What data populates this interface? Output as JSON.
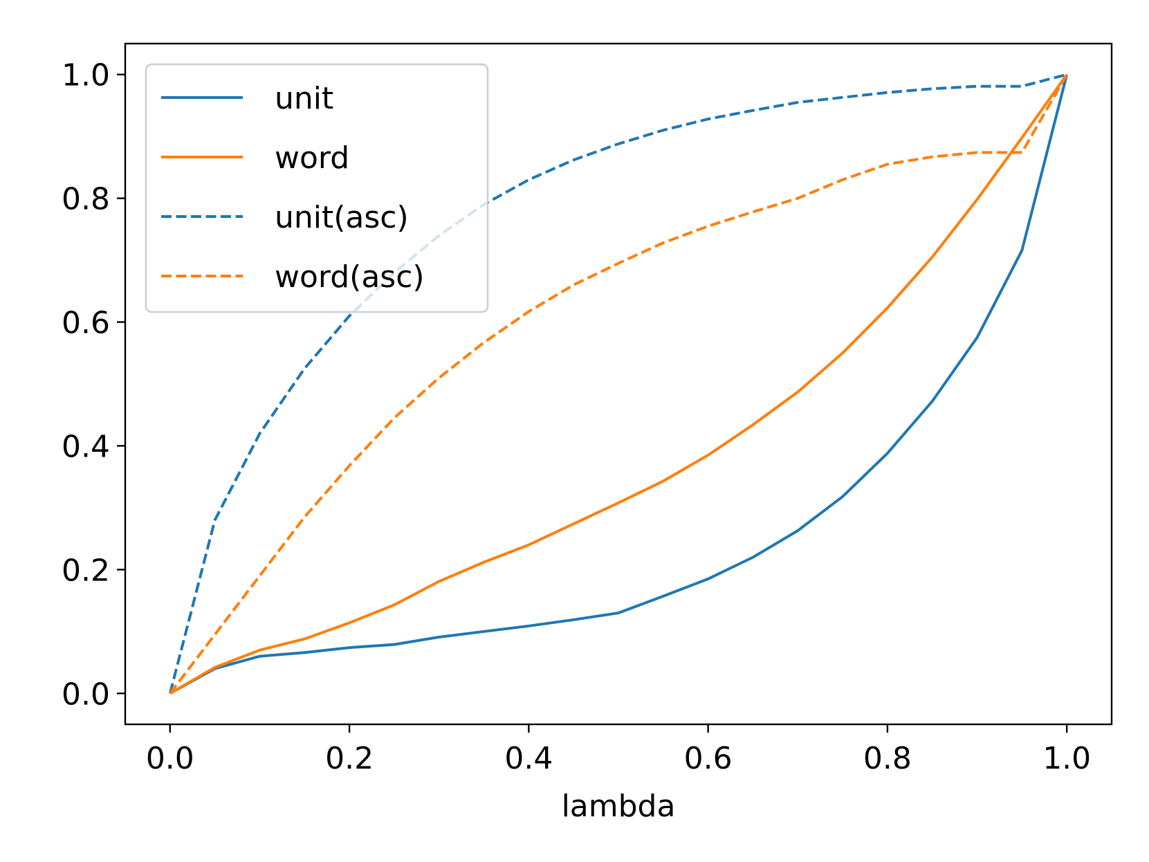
{
  "chart_data": {
    "type": "line",
    "title": "",
    "xlabel": "lambda",
    "ylabel": "",
    "xlim": [
      -0.05,
      1.05
    ],
    "ylim": [
      -0.05,
      1.05
    ],
    "xticks": [
      0.0,
      0.2,
      0.4,
      0.6,
      0.8,
      1.0
    ],
    "yticks": [
      0.0,
      0.2,
      0.4,
      0.6,
      0.8,
      1.0
    ],
    "xtick_labels": [
      "0.0",
      "0.2",
      "0.4",
      "0.6",
      "0.8",
      "1.0"
    ],
    "ytick_labels": [
      "0.0",
      "0.2",
      "0.4",
      "0.6",
      "0.8",
      "1.0"
    ],
    "grid": false,
    "legend_position": "upper-left",
    "x": [
      0.0,
      0.05,
      0.1,
      0.15,
      0.2,
      0.25,
      0.3,
      0.35,
      0.4,
      0.45,
      0.5,
      0.55,
      0.6,
      0.65,
      0.7,
      0.75,
      0.8,
      0.85,
      0.9,
      0.95,
      1.0
    ],
    "series": [
      {
        "name": "unit",
        "color": "#1f77b4",
        "style": "solid",
        "values": [
          0.0,
          0.04,
          0.06,
          0.066,
          0.074,
          0.079,
          0.091,
          0.1,
          0.109,
          0.119,
          0.13,
          0.157,
          0.185,
          0.22,
          0.263,
          0.318,
          0.388,
          0.472,
          0.575,
          0.716,
          1.0
        ]
      },
      {
        "name": "word",
        "color": "#ff7f0e",
        "style": "solid",
        "values": [
          0.0,
          0.042,
          0.07,
          0.088,
          0.114,
          0.143,
          0.181,
          0.212,
          0.24,
          0.274,
          0.308,
          0.343,
          0.385,
          0.434,
          0.487,
          0.55,
          0.623,
          0.705,
          0.798,
          0.898,
          1.0
        ]
      },
      {
        "name": "unit(asc)",
        "color": "#1f77b4",
        "style": "dashed",
        "values": [
          0.0,
          0.28,
          0.42,
          0.525,
          0.61,
          0.68,
          0.74,
          0.79,
          0.83,
          0.862,
          0.888,
          0.91,
          0.928,
          0.942,
          0.955,
          0.963,
          0.971,
          0.977,
          0.981,
          0.981,
          1.0
        ]
      },
      {
        "name": "word(asc)",
        "color": "#ff7f0e",
        "style": "dashed",
        "values": [
          0.0,
          0.095,
          0.19,
          0.285,
          0.368,
          0.445,
          0.51,
          0.567,
          0.617,
          0.66,
          0.695,
          0.728,
          0.755,
          0.778,
          0.8,
          0.83,
          0.855,
          0.867,
          0.874,
          0.874,
          1.0
        ]
      }
    ]
  }
}
